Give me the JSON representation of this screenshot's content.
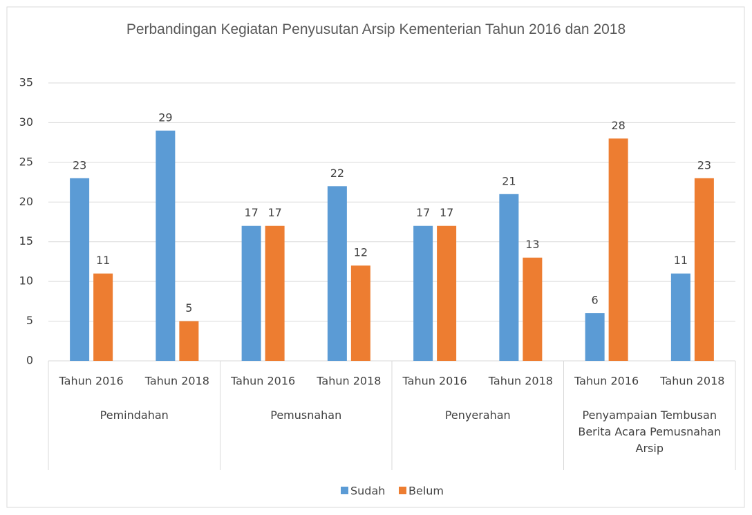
{
  "chart_data": {
    "type": "bar",
    "title": "Perbandingan Kegiatan Penyusutan Arsip Kementerian Tahun 2016 dan 2018",
    "categories": [
      "Tahun 2016",
      "Tahun 2018",
      "Tahun 2016",
      "Tahun 2018",
      "Tahun 2016",
      "Tahun 2018",
      "Tahun 2016",
      "Tahun 2018"
    ],
    "groups": [
      "Pemindahan",
      "Pemusnahan",
      "Penyerahan",
      "Penyampaian Tembusan Berita Acara Pemusnahan Arsip"
    ],
    "series": [
      {
        "name": "Sudah",
        "color": "#5b9bd5",
        "values": [
          23,
          29,
          17,
          22,
          17,
          21,
          6,
          11
        ]
      },
      {
        "name": "Belum",
        "color": "#ed7d31",
        "values": [
          11,
          5,
          17,
          12,
          17,
          13,
          28,
          23
        ]
      }
    ],
    "ylim": [
      0,
      35
    ],
    "yticks": [
      0,
      5,
      10,
      15,
      20,
      25,
      30,
      35
    ],
    "grid": true,
    "legend": "bottom"
  }
}
